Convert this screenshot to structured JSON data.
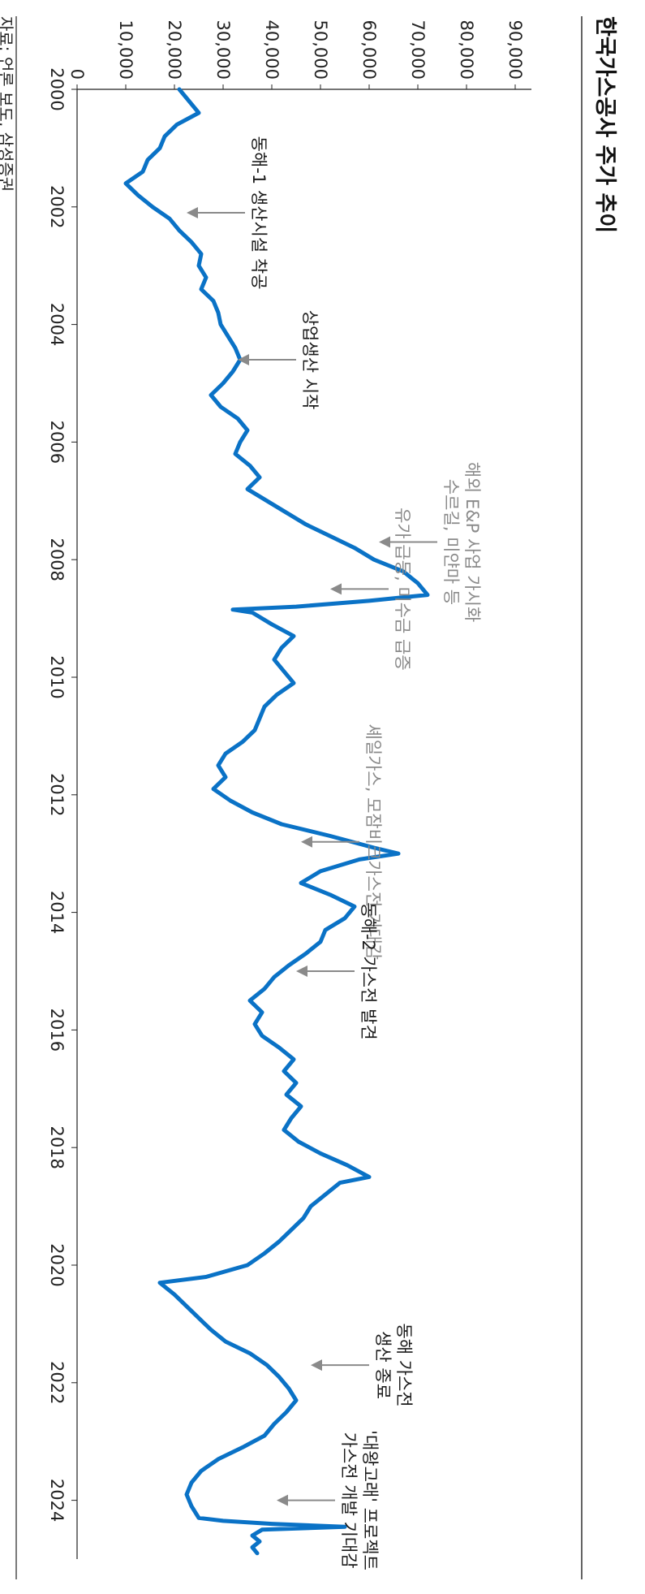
{
  "chart_data": {
    "type": "line",
    "title": "한국가스공사 주가 추이",
    "source": "자료: 언론 보도, 삼성증권",
    "xlabel": "",
    "ylabel": "",
    "xlim": [
      2000,
      2025
    ],
    "ylim": [
      0,
      90000
    ],
    "x_ticks": [
      2000,
      2002,
      2004,
      2006,
      2008,
      2010,
      2012,
      2014,
      2016,
      2018,
      2020,
      2022,
      2024
    ],
    "x_tick_labels": [
      "2000",
      "2002",
      "2004",
      "2006",
      "2008",
      "2010",
      "2012",
      "2014",
      "2016",
      "2018",
      "2020",
      "2022",
      "2024"
    ],
    "y_ticks": [
      0,
      10000,
      20000,
      30000,
      40000,
      50000,
      60000,
      70000,
      80000,
      90000
    ],
    "y_tick_labels": [
      "0",
      "10,000",
      "20,000",
      "30,000",
      "40,000",
      "50,000",
      "60,000",
      "70,000",
      "80,000",
      "90,000"
    ],
    "series": [
      {
        "name": "한국가스공사 주가",
        "color": "#0a72c6",
        "points": [
          [
            2000.0,
            21000
          ],
          [
            2000.2,
            23000
          ],
          [
            2000.4,
            25000
          ],
          [
            2000.6,
            20500
          ],
          [
            2000.8,
            18000
          ],
          [
            2001.0,
            17000
          ],
          [
            2001.2,
            14500
          ],
          [
            2001.4,
            13500
          ],
          [
            2001.6,
            10000
          ],
          [
            2001.8,
            12500
          ],
          [
            2002.0,
            15500
          ],
          [
            2002.2,
            19000
          ],
          [
            2002.4,
            21000
          ],
          [
            2002.6,
            23500
          ],
          [
            2002.8,
            25500
          ],
          [
            2003.0,
            25000
          ],
          [
            2003.2,
            26500
          ],
          [
            2003.4,
            25500
          ],
          [
            2003.6,
            28000
          ],
          [
            2003.8,
            29000
          ],
          [
            2004.0,
            29500
          ],
          [
            2004.2,
            31000
          ],
          [
            2004.4,
            32500
          ],
          [
            2004.6,
            33500
          ],
          [
            2004.8,
            32000
          ],
          [
            2005.0,
            30000
          ],
          [
            2005.2,
            27500
          ],
          [
            2005.4,
            29500
          ],
          [
            2005.6,
            33000
          ],
          [
            2005.8,
            35000
          ],
          [
            2006.0,
            33500
          ],
          [
            2006.2,
            32500
          ],
          [
            2006.4,
            35500
          ],
          [
            2006.6,
            37500
          ],
          [
            2006.8,
            35000
          ],
          [
            2007.0,
            39000
          ],
          [
            2007.2,
            43000
          ],
          [
            2007.4,
            47000
          ],
          [
            2007.6,
            52000
          ],
          [
            2007.8,
            57000
          ],
          [
            2008.0,
            61000
          ],
          [
            2008.2,
            67000
          ],
          [
            2008.4,
            70000
          ],
          [
            2008.6,
            72000
          ],
          [
            2008.7,
            60000
          ],
          [
            2008.8,
            45000
          ],
          [
            2008.85,
            32000
          ],
          [
            2008.9,
            36000
          ],
          [
            2009.1,
            40000
          ],
          [
            2009.3,
            44500
          ],
          [
            2009.5,
            42000
          ],
          [
            2009.7,
            40500
          ],
          [
            2009.9,
            42500
          ],
          [
            2010.1,
            44500
          ],
          [
            2010.3,
            41000
          ],
          [
            2010.5,
            38500
          ],
          [
            2010.7,
            37500
          ],
          [
            2010.9,
            36500
          ],
          [
            2011.1,
            34000
          ],
          [
            2011.3,
            30500
          ],
          [
            2011.5,
            29000
          ],
          [
            2011.7,
            30500
          ],
          [
            2011.9,
            28000
          ],
          [
            2012.1,
            31500
          ],
          [
            2012.3,
            36000
          ],
          [
            2012.5,
            42000
          ],
          [
            2012.7,
            52000
          ],
          [
            2012.9,
            61000
          ],
          [
            2013.0,
            66000
          ],
          [
            2013.1,
            58000
          ],
          [
            2013.3,
            50000
          ],
          [
            2013.5,
            46000
          ],
          [
            2013.7,
            52000
          ],
          [
            2013.9,
            57000
          ],
          [
            2014.1,
            55000
          ],
          [
            2014.3,
            51000
          ],
          [
            2014.5,
            50000
          ],
          [
            2014.7,
            47000
          ],
          [
            2014.9,
            43500
          ],
          [
            2015.1,
            40500
          ],
          [
            2015.3,
            38500
          ],
          [
            2015.5,
            35500
          ],
          [
            2015.7,
            38000
          ],
          [
            2015.9,
            36500
          ],
          [
            2016.1,
            38000
          ],
          [
            2016.3,
            41500
          ],
          [
            2016.5,
            44500
          ],
          [
            2016.7,
            42500
          ],
          [
            2016.9,
            45000
          ],
          [
            2017.1,
            43000
          ],
          [
            2017.3,
            46000
          ],
          [
            2017.5,
            44000
          ],
          [
            2017.7,
            42500
          ],
          [
            2017.9,
            45500
          ],
          [
            2018.1,
            50000
          ],
          [
            2018.3,
            55500
          ],
          [
            2018.5,
            60000
          ],
          [
            2018.6,
            54000
          ],
          [
            2018.8,
            51000
          ],
          [
            2019.0,
            48000
          ],
          [
            2019.2,
            46500
          ],
          [
            2019.4,
            44000
          ],
          [
            2019.6,
            41500
          ],
          [
            2019.8,
            38500
          ],
          [
            2020.0,
            35000
          ],
          [
            2020.2,
            26500
          ],
          [
            2020.3,
            17000
          ],
          [
            2020.5,
            20000
          ],
          [
            2020.7,
            22500
          ],
          [
            2020.9,
            25000
          ],
          [
            2021.1,
            27500
          ],
          [
            2021.3,
            30500
          ],
          [
            2021.5,
            35500
          ],
          [
            2021.7,
            39000
          ],
          [
            2021.9,
            41500
          ],
          [
            2022.1,
            43500
          ],
          [
            2022.3,
            45000
          ],
          [
            2022.5,
            43000
          ],
          [
            2022.7,
            40500
          ],
          [
            2022.9,
            38500
          ],
          [
            2023.1,
            34000
          ],
          [
            2023.3,
            29000
          ],
          [
            2023.5,
            25500
          ],
          [
            2023.7,
            23500
          ],
          [
            2023.9,
            22500
          ],
          [
            2024.1,
            23500
          ],
          [
            2024.3,
            25000
          ],
          [
            2024.35,
            30000
          ],
          [
            2024.4,
            40000
          ],
          [
            2024.45,
            55000
          ],
          [
            2024.5,
            38000
          ],
          [
            2024.6,
            36000
          ],
          [
            2024.7,
            37500
          ],
          [
            2024.8,
            36000
          ],
          [
            2024.9,
            37000
          ]
        ]
      }
    ],
    "annotations": [
      {
        "lines": [
          "동해-1 생산시설 착공"
        ],
        "x": 2002.1,
        "y": 22500,
        "color": "#1a1a1a"
      },
      {
        "lines": [
          "상업생산 시작"
        ],
        "x": 2004.6,
        "y": 33000,
        "color": "#1a1a1a"
      },
      {
        "lines": [
          "해외 E&P 사업 가시화",
          "수르길, 미얀마 등"
        ],
        "x": 2007.7,
        "y": 62000,
        "color": "#8a8a8a"
      },
      {
        "lines": [
          "유가 급등, 미수금 급증"
        ],
        "x": 2008.5,
        "y": 52000,
        "color": "#8a8a8a"
      },
      {
        "lines": [
          "셰일가스, 모잠비크가스전 기대감"
        ],
        "x": 2012.8,
        "y": 46000,
        "color": "#8a8a8a"
      },
      {
        "lines": [
          "동해-2 가스전 발견"
        ],
        "x": 2015.0,
        "y": 45000,
        "color": "#1a1a1a"
      },
      {
        "lines": [
          "동해 가스전",
          "생산 종료"
        ],
        "x": 2021.7,
        "y": 48000,
        "color": "#1a1a1a"
      },
      {
        "lines": [
          "'대왕고래' 프로젝트",
          "가스전 개발 기대감"
        ],
        "x": 2024.0,
        "y": 41000,
        "color": "#1a1a1a"
      }
    ]
  }
}
